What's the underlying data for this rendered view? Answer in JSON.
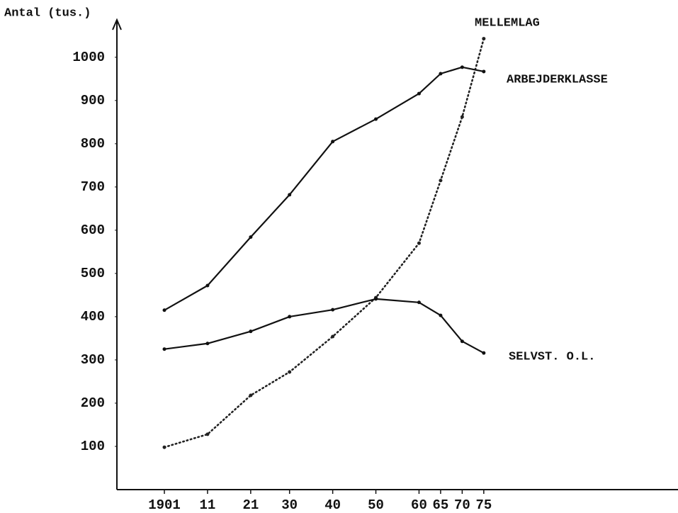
{
  "chart_data": {
    "type": "line",
    "y_label": "Antal (tus.)",
    "x": [
      1901,
      1911,
      1921,
      1930,
      1940,
      1950,
      1960,
      1965,
      1970,
      1975
    ],
    "xlim": [
      1890,
      2020
    ],
    "xticks": [
      {
        "value": 1901,
        "label": "1901"
      },
      {
        "value": 1911,
        "label": "11"
      },
      {
        "value": 1921,
        "label": "21"
      },
      {
        "value": 1930,
        "label": "30"
      },
      {
        "value": 1940,
        "label": "40"
      },
      {
        "value": 1950,
        "label": "50"
      },
      {
        "value": 1960,
        "label": "60"
      },
      {
        "value": 1965,
        "label": "65"
      },
      {
        "value": 1970,
        "label": "70"
      },
      {
        "value": 1975,
        "label": "75"
      }
    ],
    "ylim": [
      0,
      1080
    ],
    "yticks": [
      100,
      200,
      300,
      400,
      500,
      600,
      700,
      800,
      900,
      1000
    ],
    "grid": false,
    "series": [
      {
        "name": "MELLEMLAG",
        "color": "#222222",
        "style": "dotted",
        "values": [
          98,
          128,
          218,
          272,
          354,
          444,
          570,
          715,
          862,
          1043
        ]
      },
      {
        "name": "ARBEJDERKLASSE",
        "color": "#111111",
        "style": "solid",
        "values": [
          415,
          472,
          584,
          682,
          805,
          857,
          916,
          962,
          977,
          967
        ]
      },
      {
        "name": "SELVST. O.L.",
        "color": "#111111",
        "style": "solid",
        "values": [
          325,
          338,
          366,
          400,
          416,
          441,
          433,
          403,
          343,
          316
        ]
      }
    ]
  }
}
